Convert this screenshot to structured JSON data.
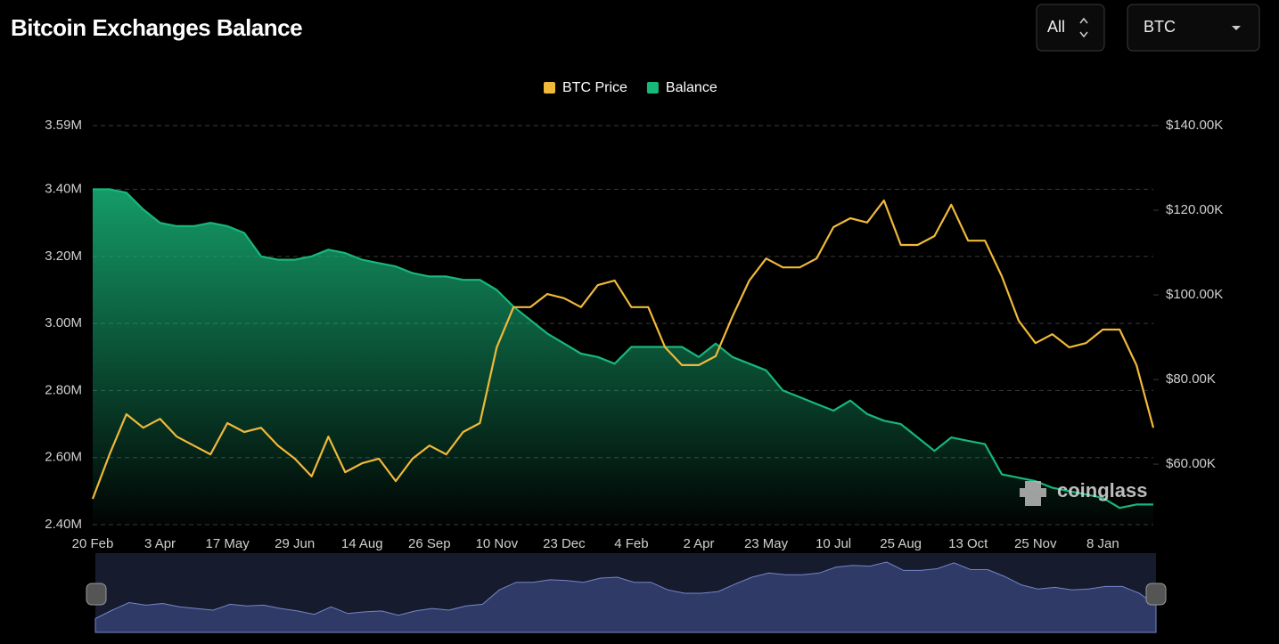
{
  "header": {
    "title": "Bitcoin Exchanges Balance",
    "range_control": "All",
    "asset_control": "BTC"
  },
  "watermark": "coinglass",
  "chart_data": {
    "type": "line",
    "categories": [
      "20 Feb",
      null,
      null,
      null,
      "3 Apr",
      null,
      null,
      null,
      "17 May",
      null,
      null,
      null,
      "29 Jun",
      null,
      null,
      null,
      "14 Aug",
      null,
      null,
      null,
      "26 Sep",
      null,
      null,
      null,
      "10 Nov",
      null,
      null,
      null,
      "23 Dec",
      null,
      null,
      null,
      "4 Feb",
      null,
      null,
      null,
      "2 Apr",
      null,
      null,
      null,
      "23 May",
      null,
      null,
      null,
      "10 Jul",
      null,
      null,
      null,
      "25 Aug",
      null,
      null,
      null,
      "13 Oct",
      null,
      null,
      null,
      "25 Nov",
      null,
      null,
      null,
      "8 Jan",
      null,
      null,
      null
    ],
    "series": [
      {
        "name": "Balance",
        "color": "#18b77a",
        "fill": "area",
        "values": [
          3400000,
          3400000,
          3390000,
          3340000,
          3300000,
          3290000,
          3290000,
          3300000,
          3290000,
          3270000,
          3200000,
          3190000,
          3190000,
          3200000,
          3220000,
          3210000,
          3190000,
          3180000,
          3170000,
          3150000,
          3140000,
          3140000,
          3130000,
          3130000,
          3100000,
          3050000,
          3010000,
          2970000,
          2940000,
          2910000,
          2900000,
          2880000,
          2930000,
          2930000,
          2930000,
          2930000,
          2900000,
          2940000,
          2900000,
          2880000,
          2860000,
          2800000,
          2780000,
          2760000,
          2740000,
          2770000,
          2730000,
          2710000,
          2700000,
          2660000,
          2620000,
          2660000,
          2650000,
          2640000,
          2550000,
          2540000,
          2530000,
          2510000,
          2500000,
          2490000,
          2480000,
          2450000,
          2460000,
          2460000
        ]
      },
      {
        "name": "BTC Price",
        "color": "#f0b93a",
        "axis": "y2",
        "values": [
          51800,
          62300,
          71800,
          68600,
          70700,
          66500,
          64400,
          62300,
          69700,
          67600,
          68600,
          64400,
          61300,
          57100,
          66500,
          58100,
          60200,
          61300,
          56000,
          61300,
          64400,
          62300,
          67600,
          69700,
          87600,
          97100,
          97100,
          100200,
          99200,
          97100,
          102300,
          103400,
          97100,
          97100,
          87600,
          83400,
          83400,
          85500,
          94900,
          103400,
          108600,
          106500,
          106500,
          108600,
          116000,
          118100,
          117100,
          122300,
          111800,
          111800,
          113900,
          121300,
          112800,
          112800,
          104400,
          93900,
          88600,
          90700,
          87600,
          88600,
          91800,
          91800,
          83400,
          68600
        ]
      }
    ],
    "ylim": [
      2400000,
      3590000
    ],
    "yticks": [
      {
        "value": 2400000,
        "label": "2.40M"
      },
      {
        "value": 2600000,
        "label": "2.60M"
      },
      {
        "value": 2800000,
        "label": "2.80M"
      },
      {
        "value": 3000000,
        "label": "3.00M"
      },
      {
        "value": 3200000,
        "label": "3.20M"
      },
      {
        "value": 3400000,
        "label": "3.40M"
      },
      {
        "value": 3590000,
        "label": "3.59M"
      }
    ],
    "y2lim": [
      45700,
      140000
    ],
    "y2ticks": [
      {
        "value": 60000,
        "label": "$60.00K"
      },
      {
        "value": 80000,
        "label": "$80.00K"
      },
      {
        "value": 100000,
        "label": "$100.00K"
      },
      {
        "value": 120000,
        "label": "$120.00K"
      },
      {
        "value": 140000,
        "label": "$140.00K"
      }
    ],
    "grid": true,
    "legend": "top"
  }
}
